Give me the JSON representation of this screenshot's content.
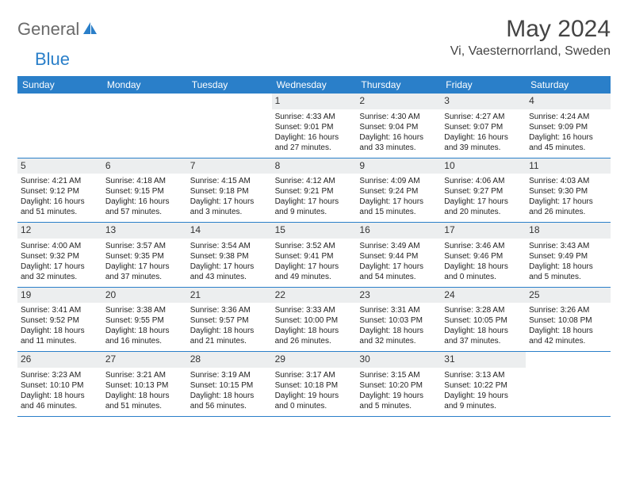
{
  "logo": {
    "part1": "General",
    "part2": "Blue"
  },
  "title": "May 2024",
  "location": "Vi, Vaesternorrland, Sweden",
  "colors": {
    "header_bg": "#2a7fc9",
    "header_text": "#ffffff",
    "daynum_bg": "#eceeef",
    "border": "#2a7fc9",
    "logo_gray": "#6a6a6a",
    "logo_blue": "#2a7fc9",
    "page_bg": "#ffffff",
    "text": "#222222"
  },
  "day_names": [
    "Sunday",
    "Monday",
    "Tuesday",
    "Wednesday",
    "Thursday",
    "Friday",
    "Saturday"
  ],
  "weeks": [
    [
      {
        "blank": true
      },
      {
        "blank": true
      },
      {
        "blank": true
      },
      {
        "n": "1",
        "sr": "4:33 AM",
        "ss": "9:01 PM",
        "dl1": "16 hours",
        "dl2": "and 27 minutes."
      },
      {
        "n": "2",
        "sr": "4:30 AM",
        "ss": "9:04 PM",
        "dl1": "16 hours",
        "dl2": "and 33 minutes."
      },
      {
        "n": "3",
        "sr": "4:27 AM",
        "ss": "9:07 PM",
        "dl1": "16 hours",
        "dl2": "and 39 minutes."
      },
      {
        "n": "4",
        "sr": "4:24 AM",
        "ss": "9:09 PM",
        "dl1": "16 hours",
        "dl2": "and 45 minutes."
      }
    ],
    [
      {
        "n": "5",
        "sr": "4:21 AM",
        "ss": "9:12 PM",
        "dl1": "16 hours",
        "dl2": "and 51 minutes."
      },
      {
        "n": "6",
        "sr": "4:18 AM",
        "ss": "9:15 PM",
        "dl1": "16 hours",
        "dl2": "and 57 minutes."
      },
      {
        "n": "7",
        "sr": "4:15 AM",
        "ss": "9:18 PM",
        "dl1": "17 hours",
        "dl2": "and 3 minutes."
      },
      {
        "n": "8",
        "sr": "4:12 AM",
        "ss": "9:21 PM",
        "dl1": "17 hours",
        "dl2": "and 9 minutes."
      },
      {
        "n": "9",
        "sr": "4:09 AM",
        "ss": "9:24 PM",
        "dl1": "17 hours",
        "dl2": "and 15 minutes."
      },
      {
        "n": "10",
        "sr": "4:06 AM",
        "ss": "9:27 PM",
        "dl1": "17 hours",
        "dl2": "and 20 minutes."
      },
      {
        "n": "11",
        "sr": "4:03 AM",
        "ss": "9:30 PM",
        "dl1": "17 hours",
        "dl2": "and 26 minutes."
      }
    ],
    [
      {
        "n": "12",
        "sr": "4:00 AM",
        "ss": "9:32 PM",
        "dl1": "17 hours",
        "dl2": "and 32 minutes."
      },
      {
        "n": "13",
        "sr": "3:57 AM",
        "ss": "9:35 PM",
        "dl1": "17 hours",
        "dl2": "and 37 minutes."
      },
      {
        "n": "14",
        "sr": "3:54 AM",
        "ss": "9:38 PM",
        "dl1": "17 hours",
        "dl2": "and 43 minutes."
      },
      {
        "n": "15",
        "sr": "3:52 AM",
        "ss": "9:41 PM",
        "dl1": "17 hours",
        "dl2": "and 49 minutes."
      },
      {
        "n": "16",
        "sr": "3:49 AM",
        "ss": "9:44 PM",
        "dl1": "17 hours",
        "dl2": "and 54 minutes."
      },
      {
        "n": "17",
        "sr": "3:46 AM",
        "ss": "9:46 PM",
        "dl1": "18 hours",
        "dl2": "and 0 minutes."
      },
      {
        "n": "18",
        "sr": "3:43 AM",
        "ss": "9:49 PM",
        "dl1": "18 hours",
        "dl2": "and 5 minutes."
      }
    ],
    [
      {
        "n": "19",
        "sr": "3:41 AM",
        "ss": "9:52 PM",
        "dl1": "18 hours",
        "dl2": "and 11 minutes."
      },
      {
        "n": "20",
        "sr": "3:38 AM",
        "ss": "9:55 PM",
        "dl1": "18 hours",
        "dl2": "and 16 minutes."
      },
      {
        "n": "21",
        "sr": "3:36 AM",
        "ss": "9:57 PM",
        "dl1": "18 hours",
        "dl2": "and 21 minutes."
      },
      {
        "n": "22",
        "sr": "3:33 AM",
        "ss": "10:00 PM",
        "dl1": "18 hours",
        "dl2": "and 26 minutes."
      },
      {
        "n": "23",
        "sr": "3:31 AM",
        "ss": "10:03 PM",
        "dl1": "18 hours",
        "dl2": "and 32 minutes."
      },
      {
        "n": "24",
        "sr": "3:28 AM",
        "ss": "10:05 PM",
        "dl1": "18 hours",
        "dl2": "and 37 minutes."
      },
      {
        "n": "25",
        "sr": "3:26 AM",
        "ss": "10:08 PM",
        "dl1": "18 hours",
        "dl2": "and 42 minutes."
      }
    ],
    [
      {
        "n": "26",
        "sr": "3:23 AM",
        "ss": "10:10 PM",
        "dl1": "18 hours",
        "dl2": "and 46 minutes."
      },
      {
        "n": "27",
        "sr": "3:21 AM",
        "ss": "10:13 PM",
        "dl1": "18 hours",
        "dl2": "and 51 minutes."
      },
      {
        "n": "28",
        "sr": "3:19 AM",
        "ss": "10:15 PM",
        "dl1": "18 hours",
        "dl2": "and 56 minutes."
      },
      {
        "n": "29",
        "sr": "3:17 AM",
        "ss": "10:18 PM",
        "dl1": "19 hours",
        "dl2": "and 0 minutes."
      },
      {
        "n": "30",
        "sr": "3:15 AM",
        "ss": "10:20 PM",
        "dl1": "19 hours",
        "dl2": "and 5 minutes."
      },
      {
        "n": "31",
        "sr": "3:13 AM",
        "ss": "10:22 PM",
        "dl1": "19 hours",
        "dl2": "and 9 minutes."
      },
      {
        "blank": true
      }
    ]
  ],
  "labels": {
    "sunrise": "Sunrise:",
    "sunset": "Sunset:",
    "daylight": "Daylight:"
  }
}
